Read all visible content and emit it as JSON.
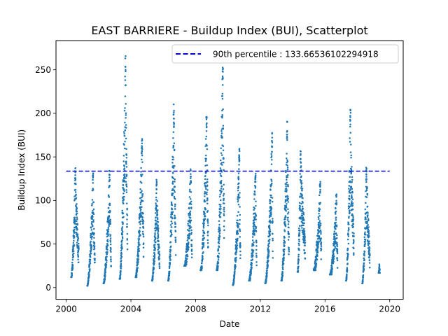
{
  "chart_data": {
    "type": "scatter",
    "title": "EAST BARRIERE - Buildup Index (BUI), Scatterplot",
    "xlabel": "Date",
    "ylabel": "Buildup Index (BUI)",
    "xlim": [
      "1999-05-15",
      "2020-11-01"
    ],
    "ylim": [
      -13.5,
      283.5
    ],
    "xticks": [
      "2000",
      "2004",
      "2008",
      "2012",
      "2016",
      "2020"
    ],
    "yticks": [
      0,
      50,
      100,
      150,
      200,
      250
    ],
    "grid": false,
    "legend_position": "top-right",
    "reference_line": {
      "label": "90th percentile : 133.66536102294918",
      "value": 133.66536102294918,
      "x_start": "2000-01-01",
      "x_end": "2019-12-31",
      "color": "#0000cc",
      "style": "dashed"
    },
    "series": [
      {
        "color": "#1f77b4",
        "seasons": [
          {
            "year": 2000,
            "start": "2000-04-20",
            "end": "2000-10-10",
            "peak": 138,
            "peak_at": 0.55,
            "min": 12
          },
          {
            "year": 2001,
            "start": "2001-04-20",
            "end": "2001-10-10",
            "peak": 133,
            "peak_at": 0.75,
            "min": 2
          },
          {
            "year": 2002,
            "start": "2002-04-20",
            "end": "2002-10-10",
            "peak": 135,
            "peak_at": 0.8,
            "min": 5
          },
          {
            "year": 2003,
            "start": "2003-04-20",
            "end": "2003-10-15",
            "peak": 270,
            "peak_at": 0.75,
            "min": 10
          },
          {
            "year": 2004,
            "start": "2004-04-15",
            "end": "2004-10-15",
            "peak": 172,
            "peak_at": 0.8,
            "min": 12
          },
          {
            "year": 2005,
            "start": "2005-04-20",
            "end": "2005-10-10",
            "peak": 125,
            "peak_at": 0.6,
            "min": 8
          },
          {
            "year": 2006,
            "start": "2006-04-20",
            "end": "2006-10-10",
            "peak": 211,
            "peak_at": 0.75,
            "min": 8
          },
          {
            "year": 2007,
            "start": "2007-04-20",
            "end": "2007-10-10",
            "peak": 136,
            "peak_at": 0.85,
            "min": 25
          },
          {
            "year": 2008,
            "start": "2008-04-20",
            "end": "2008-10-10",
            "peak": 206,
            "peak_at": 0.8,
            "min": 20
          },
          {
            "year": 2009,
            "start": "2009-04-20",
            "end": "2009-10-10",
            "peak": 258,
            "peak_at": 0.8,
            "min": 20
          },
          {
            "year": 2010,
            "start": "2010-04-20",
            "end": "2010-10-10",
            "peak": 160,
            "peak_at": 0.85,
            "min": 3
          },
          {
            "year": 2011,
            "start": "2011-04-20",
            "end": "2011-10-10",
            "peak": 133,
            "peak_at": 0.85,
            "min": 8
          },
          {
            "year": 2012,
            "start": "2012-04-20",
            "end": "2012-10-10",
            "peak": 178,
            "peak_at": 0.9,
            "min": 5
          },
          {
            "year": 2013,
            "start": "2013-04-20",
            "end": "2013-10-10",
            "peak": 195,
            "peak_at": 0.75,
            "min": 8
          },
          {
            "year": 2014,
            "start": "2014-04-20",
            "end": "2014-10-10",
            "peak": 158,
            "peak_at": 0.4,
            "min": 18
          },
          {
            "year": 2015,
            "start": "2015-04-20",
            "end": "2015-10-10",
            "peak": 123,
            "peak_at": 0.85,
            "min": 20
          },
          {
            "year": 2016,
            "start": "2016-04-20",
            "end": "2016-10-10",
            "peak": 108,
            "peak_at": 0.85,
            "min": 15
          },
          {
            "year": 2017,
            "start": "2017-04-20",
            "end": "2017-10-15",
            "peak": 207,
            "peak_at": 0.55,
            "min": 8
          },
          {
            "year": 2018,
            "start": "2018-04-20",
            "end": "2018-10-10",
            "peak": 141,
            "peak_at": 0.55,
            "min": 5
          },
          {
            "year": 2019,
            "start": "2019-04-25",
            "end": "2019-05-25",
            "peak": 27,
            "peak_at": 0.5,
            "min": 17
          }
        ]
      }
    ]
  }
}
